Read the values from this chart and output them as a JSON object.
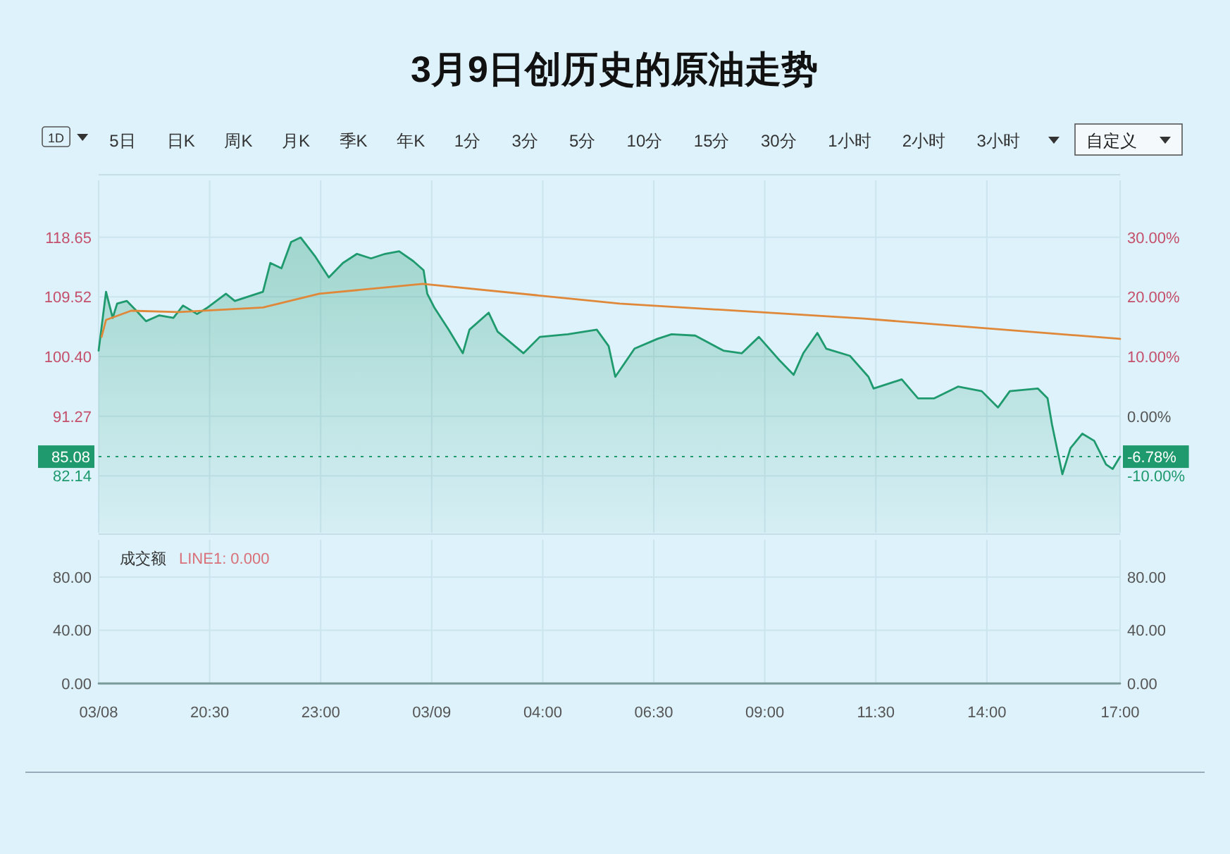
{
  "chart_data": [
    {
      "type": "area",
      "title": "3月9日创历史的原油走势",
      "annotations": [
        "1D",
        "5日",
        "日K",
        "周K",
        "月K",
        "季K",
        "年K",
        "1分",
        "3分",
        "5分",
        "10分",
        "15分",
        "30分",
        "1小时",
        "2小时",
        "3小时",
        "自定义",
        {
          "text": "-6.78%",
          "x": "--03-09T17:00",
          "y": 85.08
        }
      ],
      "xlim": [
        "--03-08T18:00",
        "--03-09T17:00"
      ],
      "xticks": [
        "--03-08T18:00",
        "--03-08T20:30",
        "--03-08T23:00",
        "--03-09T01:30",
        "--03-09T04:00",
        "--03-09T06:30",
        "--03-09T09:00",
        "--03-09T11:30",
        "--03-09T14:00",
        "--03-09T17:00"
      ],
      "ylim": [
        73.45,
        127.34
      ],
      "yticks": [
        118.65,
        109.52,
        {
          "value": 100.4,
          "label": "100.40"
        },
        91.27,
        82.14
      ],
      "y2lim": [
        -19.52,
        39.52
      ],
      "y2ticks": [
        {
          "value": 30,
          "label": "30.00%"
        },
        {
          "value": 20,
          "label": "20.00%"
        },
        {
          "value": 10,
          "label": "10.00%"
        },
        {
          "value": 0,
          "label": "0.00%"
        },
        {
          "value": -10,
          "label": "-10.00%"
        }
      ],
      "tick_labels": "y",
      "grid": true,
      "ref_lines": [
        {
          "axis": "y",
          "value": 85.08,
          "label": "85.08",
          "color": "#1f9a6e",
          "line_style": "dotted"
        }
      ],
      "series": [
        {
          "color": "#1f9a6e",
          "x": [
            "--03-08T18:00",
            "--03-08T18:10",
            "--03-08T18:19",
            "--03-08T18:25",
            "--03-08T18:38",
            "--03-08T18:51",
            "--03-08T19:04",
            "--03-08T19:22",
            "--03-08T19:41",
            "--03-08T19:54",
            "--03-08T20:13",
            "--03-08T20:26",
            "--03-08T20:52",
            "--03-08T21:04",
            "--03-08T21:23",
            "--03-08T21:42",
            "--03-08T21:52",
            "--03-08T22:07",
            "--03-08T22:20",
            "--03-08T22:33",
            "--03-08T22:52",
            "--03-08T23:11",
            "--03-08T23:30",
            "--03-08T23:49",
            "--03-09T00:08",
            "--03-09T00:27",
            "--03-09T00:46",
            "--03-09T01:05",
            "--03-09T01:19",
            "--03-09T01:24",
            "--03-09T01:34",
            "--03-09T01:53",
            "--03-09T02:12",
            "--03-09T02:21",
            "--03-09T02:47",
            "--03-09T02:59",
            "--03-09T03:34",
            "--03-09T03:56",
            "--03-09T04:34",
            "--03-09T05:13",
            "--03-09T05:29",
            "--03-09T05:38",
            "--03-09T06:04",
            "--03-09T06:35",
            "--03-09T06:54",
            "--03-09T07:26",
            "--03-09T08:04",
            "--03-09T08:29",
            "--03-09T08:52",
            "--03-09T09:20",
            "--03-09T09:39",
            "--03-09T09:52",
            "--03-09T10:11",
            "--03-09T10:23",
            "--03-09T10:55",
            "--03-09T11:20",
            "--03-09T11:27",
            "--03-09T12:05",
            "--03-09T12:27",
            "--03-09T12:49",
            "--03-09T13:21",
            "--03-09T13:53",
            "--03-09T14:15",
            "--03-09T14:31",
            "--03-09T15:09",
            "--03-09T15:22",
            "--03-09T15:28",
            "--03-09T15:42",
            "--03-09T15:53",
            "--03-09T16:09",
            "--03-09T16:25",
            "--03-09T16:41",
            "--03-09T16:50",
            "--03-09T17:00"
          ],
          "values": [
            101.3,
            110.3,
            106.3,
            108.5,
            108.9,
            107.4,
            105.8,
            106.7,
            106.3,
            108.2,
            106.9,
            107.8,
            110.0,
            108.9,
            109.6,
            110.3,
            114.7,
            113.9,
            117.9,
            118.6,
            115.8,
            112.5,
            114.7,
            116.1,
            115.4,
            116.1,
            116.5,
            115.0,
            113.6,
            110.0,
            107.8,
            104.5,
            100.9,
            104.5,
            107.1,
            104.2,
            100.9,
            103.4,
            103.8,
            104.5,
            102.0,
            97.3,
            101.6,
            103.1,
            103.8,
            103.6,
            101.3,
            100.9,
            103.4,
            99.8,
            97.6,
            100.9,
            104.0,
            101.6,
            100.5,
            97.3,
            95.5,
            96.9,
            94.0,
            94.0,
            95.8,
            95.1,
            92.6,
            95.1,
            95.5,
            94.0,
            90.0,
            82.4,
            86.4,
            88.6,
            87.5,
            83.9,
            83.2,
            85.08
          ]
        },
        {
          "type": "line",
          "color": "#e0883a",
          "x": [
            "--03-08T18:04",
            "--03-08T18:10",
            "--03-08T18:44",
            "--03-08T19:48",
            "--03-08T21:42",
            "--03-08T22:58",
            "--03-09T01:18",
            "--03-09T05:44",
            "--03-09T11:14",
            "--03-09T17:00"
          ],
          "values": [
            103.4,
            106.0,
            107.4,
            107.2,
            107.9,
            110.0,
            111.5,
            108.5,
            106.2,
            103.1
          ]
        }
      ]
    },
    {
      "type": "line",
      "annotations": [
        "成交额",
        "LINE1: 0.000"
      ],
      "xlim": [
        "--03-08T18:00",
        "--03-09T17:00"
      ],
      "xticks": [
        {
          "value": "--03-08T18:00",
          "label": "03/08"
        },
        {
          "value": "--03-08T20:30",
          "label": "20:30"
        },
        {
          "value": "--03-08T23:00",
          "label": "23:00"
        },
        {
          "value": "--03-09T01:30",
          "label": "03/09"
        },
        {
          "value": "--03-09T04:00",
          "label": "04:00"
        },
        {
          "value": "--03-09T06:30",
          "label": "06:30"
        },
        {
          "value": "--03-09T09:00",
          "label": "09:00"
        },
        {
          "value": "--03-09T11:30",
          "label": "11:30"
        },
        {
          "value": "--03-09T14:00",
          "label": "14:00"
        },
        {
          "value": "--03-09T17:00",
          "label": "17:00"
        }
      ],
      "ylim": [
        0,
        108
      ],
      "yticks": [
        {
          "value": 0,
          "label": "0.00"
        },
        {
          "value": 40,
          "label": "40.00"
        },
        {
          "value": 80,
          "label": "80.00"
        }
      ],
      "y2lim": [
        0,
        108
      ],
      "y2ticks": [
        {
          "value": 0,
          "label": "0.00"
        },
        {
          "value": 40,
          "label": "40.00"
        },
        {
          "value": 80,
          "label": "80.00"
        }
      ],
      "grid": true,
      "series": [
        {
          "color": "#7a9a9a",
          "x": [
            "--03-08T18:00",
            "--03-09T17:00"
          ],
          "values": [
            0,
            0
          ]
        }
      ]
    }
  ]
}
